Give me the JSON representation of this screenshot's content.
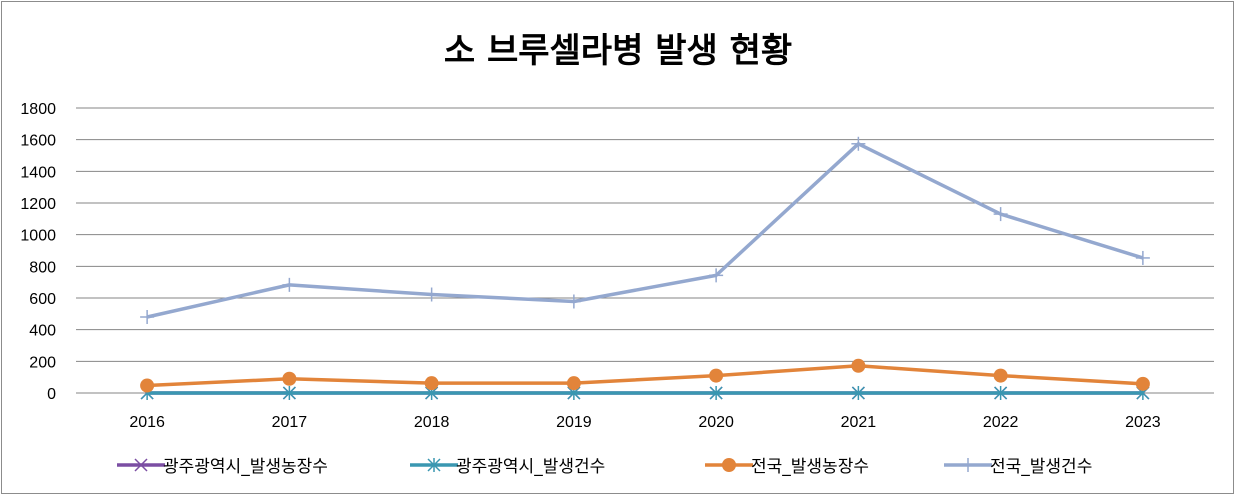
{
  "chart_data": {
    "type": "line",
    "title": "소 브루셀라병 발생 현황",
    "xlabel": "",
    "ylabel": "",
    "categories": [
      "2016",
      "2017",
      "2018",
      "2019",
      "2020",
      "2021",
      "2022",
      "2023"
    ],
    "ylim": [
      0,
      1800
    ],
    "yticks": [
      "0",
      "200",
      "400",
      "600",
      "800",
      "1000",
      "1200",
      "1400",
      "1600",
      "1800"
    ],
    "grid": true,
    "legend_position": "bottom",
    "series": [
      {
        "name": "광주광역시_발생농장수",
        "values": [
          0,
          0,
          0,
          0,
          0,
          0,
          0,
          0
        ],
        "color": "#7b4ea3",
        "marker": "x"
      },
      {
        "name": "광주광역시_발생건수",
        "values": [
          0,
          0,
          0,
          0,
          0,
          0,
          0,
          0
        ],
        "color": "#3a97b1",
        "marker": "asterisk"
      },
      {
        "name": "전국_발생농장수",
        "values": [
          47,
          90,
          62,
          62,
          110,
          172,
          110,
          58
        ],
        "color": "#e2843a",
        "marker": "circle"
      },
      {
        "name": "전국_발생건수",
        "values": [
          480,
          683,
          622,
          578,
          743,
          1574,
          1130,
          853
        ],
        "color": "#94a8cf",
        "marker": "plus"
      }
    ]
  }
}
